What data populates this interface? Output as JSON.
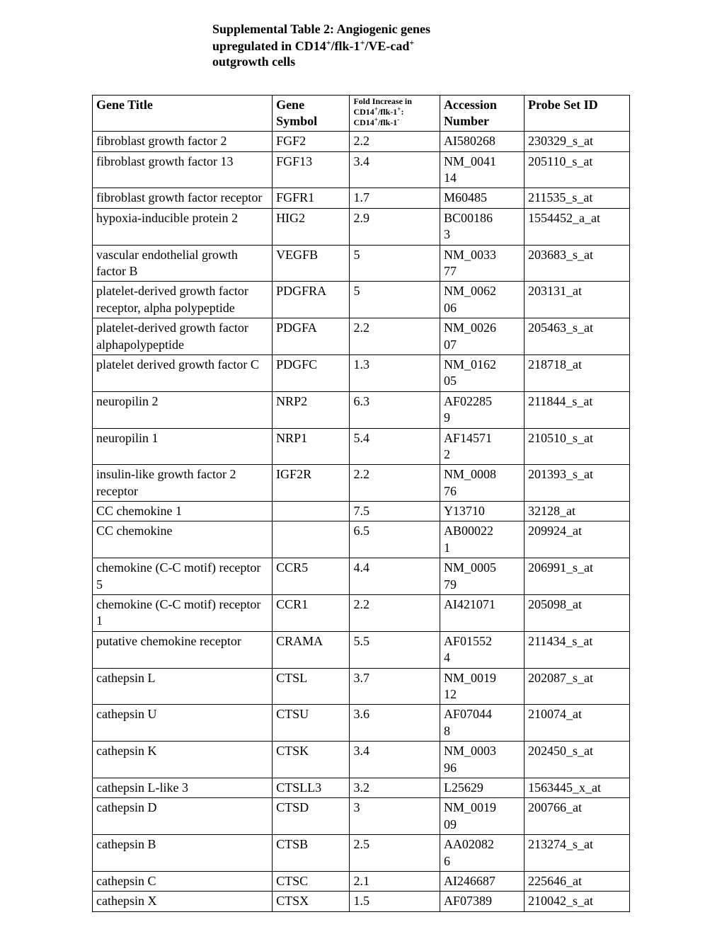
{
  "title": {
    "line1": "Supplemental Table 2: Angiogenic genes",
    "line2_pre": "upregulated in CD14",
    "line2_mid1": "/flk-1",
    "line2_mid2": "/VE-cad",
    "line3": "outgrowth cells"
  },
  "headers": {
    "gene_title": "Gene Title",
    "gene_symbol": "Gene Symbol",
    "fold_main": "Fold Increase in",
    "fold_l1a": "CD14",
    "fold_l1b": "/flk-1",
    "fold_l1c": ":",
    "fold_l2a": "CD14",
    "fold_l2b": "/flk-1",
    "accession": "Accession Number",
    "probe": "Probe Set ID"
  },
  "rows": [
    {
      "title": "fibroblast growth factor 2",
      "symbol": "FGF2",
      "fold": "2.2",
      "acc": "AI580268",
      "probe": "230329_s_at"
    },
    {
      "title": "fibroblast growth factor 13",
      "symbol": "FGF13",
      "fold": "3.4",
      "acc": "NM_0041\n14",
      "probe": "205110_s_at"
    },
    {
      "title": "fibroblast growth factor receptor",
      "symbol": "FGFR1",
      "fold": "1.7",
      "acc": "M60485",
      "probe": "211535_s_at"
    },
    {
      "title": "hypoxia-inducible protein 2",
      "symbol": "HIG2",
      "fold": "2.9",
      "acc": "BC00186\n3",
      "probe": "1554452_a_at"
    },
    {
      "title": "vascular endothelial growth factor B",
      "symbol": "VEGFB",
      "fold": "5",
      "acc": "NM_0033\n77",
      "probe": "203683_s_at"
    },
    {
      "title": "platelet-derived growth factor receptor, alpha polypeptide",
      "symbol": "PDGFRA",
      "fold": "5",
      "acc": "NM_0062\n06",
      "probe": "203131_at"
    },
    {
      "title": "platelet-derived growth factor alphapolypeptide",
      "symbol": "PDGFA",
      "fold": "2.2",
      "acc": "NM_0026\n07",
      "probe": "205463_s_at"
    },
    {
      "title": "platelet derived growth factor C",
      "symbol": "PDGFC",
      "fold": "1.3",
      "acc": "NM_0162\n05",
      "probe": "218718_at"
    },
    {
      "title": "neuropilin 2",
      "symbol": "NRP2",
      "fold": "6.3",
      "acc": "AF02285\n9",
      "probe": "211844_s_at"
    },
    {
      "title": "neuropilin 1",
      "symbol": "NRP1",
      "fold": "5.4",
      "acc": "AF14571\n2",
      "probe": "210510_s_at"
    },
    {
      "title": "insulin-like growth factor 2 receptor",
      "symbol": "IGF2R",
      "fold": "2.2",
      "acc": "NM_0008\n76",
      "probe": "201393_s_at"
    },
    {
      "title": "CC chemokine 1",
      "symbol": "",
      "fold": "7.5",
      "acc": "Y13710",
      "probe": "32128_at"
    },
    {
      "title": "CC chemokine",
      "symbol": "",
      "fold": "6.5",
      "acc": "AB00022\n1",
      "probe": "209924_at"
    },
    {
      "title": "chemokine (C-C motif) receptor 5",
      "symbol": "CCR5",
      "fold": "4.4",
      "acc": "NM_0005\n79",
      "probe": "206991_s_at"
    },
    {
      "title": "chemokine (C-C motif) receptor 1",
      "symbol": "CCR1",
      "fold": "2.2",
      "acc": "AI421071",
      "probe": "205098_at"
    },
    {
      "title": "putative chemokine receptor",
      "symbol": "CRAMA",
      "fold": "5.5",
      "acc": "AF01552\n4",
      "probe": "211434_s_at"
    },
    {
      "title": "cathepsin L",
      "symbol": "CTSL",
      "fold": "3.7",
      "acc": "NM_0019\n12",
      "probe": "202087_s_at"
    },
    {
      "title": "cathepsin U",
      "symbol": "CTSU",
      "fold": "3.6",
      "acc": "AF07044\n8",
      "probe": "210074_at"
    },
    {
      "title": "cathepsin K",
      "symbol": "CTSK",
      "fold": "3.4",
      "acc": "NM_0003\n96",
      "probe": "202450_s_at"
    },
    {
      "title": "cathepsin L-like 3",
      "symbol": "CTSLL3",
      "fold": "3.2",
      "acc": "L25629",
      "probe": "1563445_x_at"
    },
    {
      "title": "cathepsin D",
      "symbol": "CTSD",
      "fold": "3",
      "acc": "NM_0019\n09",
      "probe": "200766_at"
    },
    {
      "title": "cathepsin B",
      "symbol": "CTSB",
      "fold": "2.5",
      "acc": "AA02082\n6",
      "probe": "213274_s_at"
    },
    {
      "title": "cathepsin C",
      "symbol": "CTSC",
      "fold": "2.1",
      "acc": "AI246687",
      "probe": "225646_at"
    },
    {
      "title": "cathepsin X",
      "symbol": "CTSX",
      "fold": "1.5",
      "acc": "AF07389",
      "probe": "210042_s_at"
    }
  ]
}
